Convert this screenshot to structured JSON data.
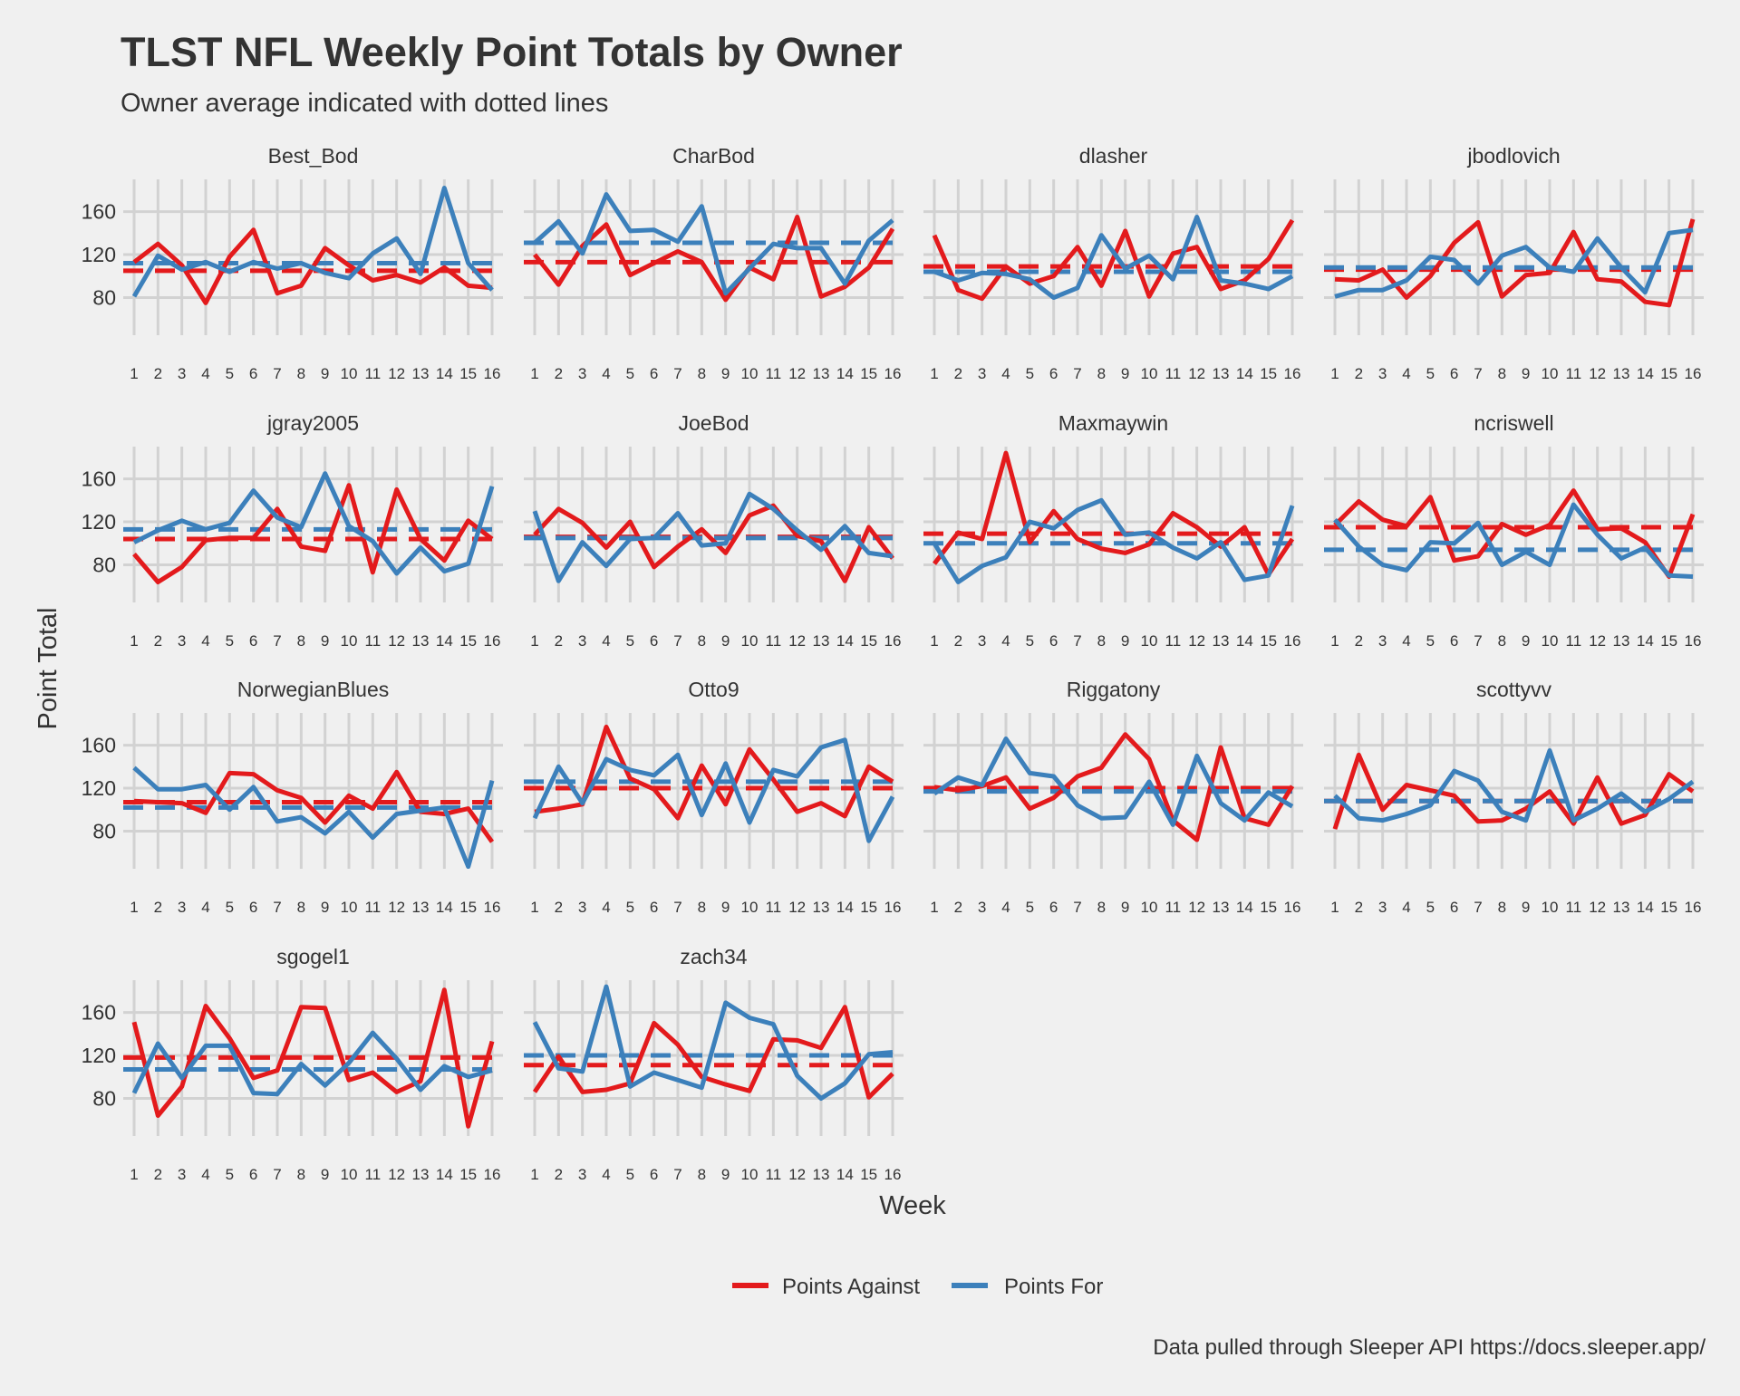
{
  "chart_data": {
    "type": "line",
    "title": "TLST NFL Weekly Point Totals by Owner",
    "subtitle": "Owner average indicated with dotted lines",
    "xlabel": "Week",
    "ylabel": "Point Total",
    "caption": "Data pulled through Sleeper API https://docs.sleeper.app/",
    "x": [
      1,
      2,
      3,
      4,
      5,
      6,
      7,
      8,
      9,
      10,
      11,
      12,
      13,
      14,
      15,
      16
    ],
    "y_ticks": [
      80,
      120,
      160
    ],
    "ylim": [
      45,
      190
    ],
    "grid": true,
    "legend_position": "bottom",
    "legend": [
      {
        "name": "Points Against",
        "color": "#e31a1c"
      },
      {
        "name": "Points For",
        "color": "#3c80bb"
      }
    ],
    "panels": [
      {
        "owner": "Best_Bod",
        "against": [
          113,
          130,
          110,
          75,
          118,
          143,
          84,
          91,
          126,
          110,
          96,
          101,
          94,
          108,
          91,
          89
        ],
        "for": [
          81,
          119,
          106,
          113,
          104,
          113,
          107,
          112,
          103,
          98,
          121,
          135,
          102,
          182,
          112,
          87
        ],
        "against_avg": 105,
        "for_avg": 112
      },
      {
        "owner": "CharBod",
        "against": [
          120,
          92,
          128,
          148,
          101,
          112,
          123,
          113,
          78,
          108,
          97,
          155,
          81,
          90,
          108,
          144
        ],
        "for": [
          131,
          151,
          121,
          176,
          142,
          143,
          132,
          165,
          84,
          107,
          130,
          126,
          126,
          93,
          133,
          152
        ],
        "against_avg": 113,
        "for_avg": 131
      },
      {
        "owner": "dlasher",
        "against": [
          138,
          87,
          79,
          109,
          93,
          100,
          127,
          91,
          142,
          81,
          121,
          127,
          88,
          96,
          116,
          152
        ],
        "for": [
          104,
          96,
          103,
          102,
          97,
          80,
          89,
          138,
          107,
          119,
          97,
          155,
          96,
          93,
          88,
          100
        ],
        "against_avg": 109,
        "for_avg": 104
      },
      {
        "owner": "jbodlovich",
        "against": [
          97,
          96,
          106,
          80,
          100,
          131,
          150,
          81,
          101,
          103,
          141,
          97,
          95,
          76,
          73,
          153
        ],
        "for": [
          81,
          87,
          87,
          96,
          118,
          115,
          93,
          119,
          127,
          108,
          104,
          135,
          108,
          85,
          140,
          143
        ],
        "against_avg": 106,
        "for_avg": 108
      },
      {
        "owner": "jgray2005",
        "against": [
          90,
          64,
          78,
          103,
          105,
          105,
          132,
          97,
          93,
          154,
          73,
          150,
          104,
          84,
          121,
          104
        ],
        "for": [
          101,
          112,
          121,
          113,
          119,
          149,
          124,
          115,
          165,
          116,
          102,
          72,
          96,
          74,
          81,
          153
        ],
        "against_avg": 104,
        "for_avg": 113
      },
      {
        "owner": "JoeBod",
        "against": [
          108,
          132,
          119,
          96,
          120,
          78,
          97,
          113,
          91,
          126,
          135,
          107,
          102,
          65,
          115,
          86
        ],
        "for": [
          130,
          65,
          101,
          79,
          104,
          105,
          128,
          98,
          100,
          146,
          132,
          112,
          94,
          116,
          91,
          88
        ],
        "against_avg": 106,
        "for_avg": 105
      },
      {
        "owner": "Maxmaywin",
        "against": [
          81,
          110,
          104,
          184,
          101,
          130,
          104,
          95,
          91,
          99,
          128,
          115,
          97,
          115,
          71,
          104
        ],
        "for": [
          100,
          64,
          79,
          87,
          120,
          114,
          131,
          140,
          108,
          110,
          96,
          86,
          101,
          66,
          70,
          135
        ],
        "against_avg": 109,
        "for_avg": 100
      },
      {
        "owner": "ncriswell",
        "against": [
          117,
          139,
          122,
          116,
          143,
          84,
          88,
          118,
          108,
          117,
          149,
          113,
          114,
          101,
          69,
          127
        ],
        "for": [
          122,
          97,
          80,
          75,
          101,
          100,
          119,
          80,
          92,
          80,
          136,
          108,
          86,
          96,
          70,
          69
        ],
        "against_avg": 115,
        "for_avg": 94
      },
      {
        "owner": "NorwegianBlues",
        "against": [
          108,
          107,
          106,
          97,
          134,
          133,
          118,
          111,
          88,
          113,
          101,
          135,
          98,
          96,
          101,
          70
        ],
        "for": [
          139,
          119,
          119,
          123,
          100,
          121,
          89,
          93,
          78,
          98,
          74,
          96,
          99,
          102,
          47,
          127
        ],
        "against_avg": 107,
        "for_avg": 102
      },
      {
        "owner": "Otto9",
        "against": [
          98,
          101,
          105,
          177,
          129,
          119,
          92,
          141,
          105,
          156,
          128,
          98,
          106,
          94,
          140,
          126
        ],
        "for": [
          92,
          140,
          106,
          147,
          137,
          132,
          151,
          95,
          143,
          88,
          137,
          131,
          158,
          165,
          71,
          112
        ],
        "against_avg": 120,
        "for_avg": 126
      },
      {
        "owner": "Riggatony",
        "against": [
          121,
          118,
          122,
          130,
          101,
          111,
          131,
          139,
          170,
          147,
          90,
          72,
          158,
          92,
          86,
          122
        ],
        "for": [
          115,
          130,
          123,
          166,
          134,
          131,
          104,
          92,
          93,
          126,
          86,
          150,
          106,
          90,
          116,
          103
        ],
        "against_avg": 120,
        "for_avg": 117
      },
      {
        "owner": "scottyvv",
        "against": [
          82,
          151,
          100,
          123,
          118,
          113,
          89,
          90,
          101,
          117,
          87,
          130,
          87,
          95,
          133,
          117
        ],
        "for": [
          113,
          92,
          90,
          96,
          104,
          136,
          127,
          98,
          90,
          155,
          90,
          101,
          115,
          98,
          110,
          126
        ],
        "against_avg": 108,
        "for_avg": 108
      },
      {
        "owner": "sgogel1",
        "against": [
          151,
          64,
          91,
          166,
          136,
          99,
          106,
          165,
          164,
          97,
          104,
          86,
          96,
          181,
          54,
          133
        ],
        "for": [
          85,
          131,
          99,
          129,
          129,
          85,
          84,
          112,
          92,
          113,
          141,
          117,
          88,
          110,
          100,
          106
        ],
        "against_avg": 118,
        "for_avg": 107
      },
      {
        "owner": "zach34",
        "against": [
          86,
          119,
          86,
          88,
          94,
          150,
          130,
          100,
          93,
          87,
          135,
          134,
          127,
          165,
          81,
          103
        ],
        "for": [
          151,
          108,
          105,
          184,
          91,
          104,
          97,
          90,
          169,
          155,
          149,
          101,
          80,
          94,
          121,
          123
        ],
        "against_avg": 111,
        "for_avg": 120
      }
    ]
  }
}
